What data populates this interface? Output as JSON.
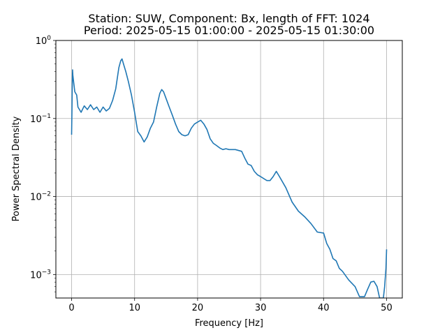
{
  "chart_data": {
    "type": "line",
    "title": [
      "Station: SUW, Component: Bx, length of FFT: 1024",
      "Period: 2025-05-15 01:00:00 - 2025-05-15 01:30:00"
    ],
    "xlabel": "Frequency [Hz]",
    "ylabel": "Power Spectral Density",
    "xlim": [
      -2.5,
      52.5
    ],
    "ylim": [
      0.0005,
      1
    ],
    "yscale": "log",
    "grid": true,
    "x_ticks": [
      {
        "value": 0,
        "label": "0"
      },
      {
        "value": 10,
        "label": "10"
      },
      {
        "value": 20,
        "label": "20"
      },
      {
        "value": 30,
        "label": "30"
      },
      {
        "value": 40,
        "label": "40"
      },
      {
        "value": 50,
        "label": "50"
      }
    ],
    "y_ticks": [
      {
        "value": 0.001,
        "base": "10",
        "exp": "−3"
      },
      {
        "value": 0.01,
        "base": "10",
        "exp": "−2"
      },
      {
        "value": 0.1,
        "base": "10",
        "exp": "−1"
      },
      {
        "value": 1,
        "base": "10",
        "exp": "0"
      }
    ],
    "color": "#1f77b4",
    "series": [
      {
        "x": [
          0.0,
          0.05,
          0.1,
          0.15,
          0.2,
          0.3,
          0.5,
          0.8,
          1.0,
          1.5,
          2.0,
          2.5,
          3.0,
          3.5,
          4.0,
          4.5,
          5.0,
          5.5,
          6.0,
          6.5,
          7.0,
          7.5,
          7.8,
          8.0,
          8.3,
          8.6,
          9.0,
          9.5,
          10.0,
          10.5,
          11.0,
          11.5,
          12.0,
          12.5,
          13.0,
          13.5,
          14.0,
          14.3,
          14.6,
          15.0,
          15.5,
          16.0,
          16.5,
          17.0,
          17.5,
          18.0,
          18.5,
          19.0,
          19.5,
          20.0,
          20.5,
          21.0,
          21.5,
          22.0,
          22.5,
          23.0,
          23.5,
          24.0,
          24.5,
          25.0,
          26.0,
          27.0,
          27.5,
          28.0,
          28.5,
          29.0,
          29.5,
          30.0,
          31.0,
          31.5,
          32.0,
          32.5,
          33.0,
          34.0,
          35.0,
          36.0,
          37.0,
          38.0,
          39.0,
          40.0,
          40.5,
          41.0,
          41.5,
          42.0,
          42.5,
          43.0,
          44.0,
          45.0,
          45.7,
          46.5,
          47.0,
          47.5,
          48.0,
          48.5,
          48.9,
          49.5,
          49.7,
          49.9,
          50.0
        ],
        "y": [
          0.062,
          0.12,
          0.25,
          0.42,
          0.36,
          0.3,
          0.22,
          0.2,
          0.14,
          0.12,
          0.145,
          0.13,
          0.15,
          0.13,
          0.14,
          0.12,
          0.14,
          0.125,
          0.135,
          0.17,
          0.24,
          0.45,
          0.55,
          0.58,
          0.48,
          0.4,
          0.3,
          0.2,
          0.12,
          0.068,
          0.06,
          0.05,
          0.058,
          0.075,
          0.09,
          0.14,
          0.21,
          0.235,
          0.22,
          0.18,
          0.14,
          0.11,
          0.085,
          0.068,
          0.062,
          0.06,
          0.062,
          0.075,
          0.085,
          0.09,
          0.095,
          0.085,
          0.072,
          0.055,
          0.048,
          0.045,
          0.042,
          0.04,
          0.041,
          0.04,
          0.04,
          0.038,
          0.031,
          0.026,
          0.025,
          0.021,
          0.019,
          0.018,
          0.016,
          0.016,
          0.018,
          0.021,
          0.018,
          0.013,
          0.0085,
          0.0065,
          0.0055,
          0.0045,
          0.0035,
          0.0034,
          0.0025,
          0.0021,
          0.0016,
          0.0015,
          0.0012,
          0.0011,
          0.00085,
          0.0007,
          0.00052,
          0.00052,
          0.00065,
          0.0008,
          0.00082,
          0.0007,
          0.0005,
          0.0005,
          0.0007,
          0.0012,
          0.0021
        ]
      }
    ]
  }
}
